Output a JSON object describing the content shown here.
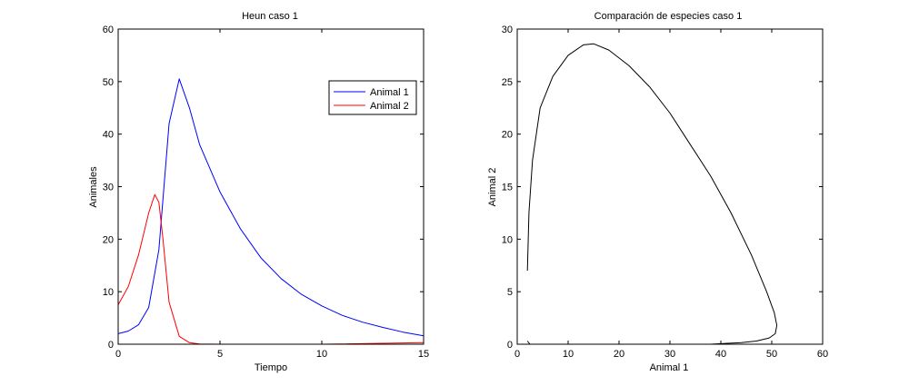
{
  "chart_data": [
    {
      "type": "line",
      "title": "Heun caso 1",
      "xlabel": "Tiempo",
      "ylabel": "Animales",
      "xlim": [
        0,
        15
      ],
      "ylim": [
        0,
        60
      ],
      "xticks": [
        0,
        5,
        10,
        15
      ],
      "yticks": [
        0,
        10,
        20,
        30,
        40,
        50,
        60
      ],
      "grid": false,
      "legend_position": "top-right",
      "series": [
        {
          "name": "Animal 1",
          "color": "#0000ff",
          "x": [
            0,
            0.5,
            1.0,
            1.5,
            2.0,
            2.5,
            3.0,
            3.5,
            4.0,
            5.0,
            6.0,
            7.0,
            8.0,
            9.0,
            10.0,
            11.0,
            12.0,
            13.0,
            14.0,
            15.0
          ],
          "y": [
            2.0,
            2.5,
            3.7,
            7.0,
            18.0,
            42.0,
            50.5,
            45.0,
            38.0,
            29.0,
            22.0,
            16.5,
            12.5,
            9.5,
            7.3,
            5.5,
            4.2,
            3.2,
            2.3,
            1.6
          ]
        },
        {
          "name": "Animal 2",
          "color": "#ff0000",
          "x": [
            0,
            0.5,
            1.0,
            1.5,
            1.8,
            2.0,
            2.2,
            2.5,
            3.0,
            3.5,
            4.0,
            5.0,
            10.0,
            15.0
          ],
          "y": [
            7.5,
            11.0,
            17.0,
            25.0,
            28.5,
            27.0,
            20.0,
            8.0,
            1.5,
            0.3,
            0.05,
            0.0,
            0.0,
            0.3
          ]
        }
      ]
    },
    {
      "type": "line",
      "title": "Comparación de especies caso 1",
      "xlabel": "Animal 1",
      "ylabel": "Animal 2",
      "xlim": [
        0,
        60
      ],
      "ylim": [
        0,
        30
      ],
      "xticks": [
        0,
        10,
        20,
        30,
        40,
        50,
        60
      ],
      "yticks": [
        0,
        5,
        10,
        15,
        20,
        25,
        30
      ],
      "grid": false,
      "series": [
        {
          "color": "#000000",
          "x": [
            2.0,
            2.3,
            3.0,
            4.5,
            7.0,
            10.0,
            13.0,
            15.0,
            18.0,
            22.0,
            26.0,
            30.0,
            34.0,
            38.0,
            42.0,
            46.0,
            49.0,
            50.5,
            51.0,
            50.7,
            49.5,
            47.0,
            44.0,
            40.0,
            38.0,
            30.0,
            20.0,
            10.0,
            5.0,
            2.5,
            2.0
          ],
          "y": [
            7.0,
            12.5,
            17.5,
            22.5,
            25.5,
            27.5,
            28.5,
            28.6,
            28.0,
            26.5,
            24.5,
            22.0,
            19.0,
            16.0,
            12.5,
            8.5,
            5.0,
            3.0,
            1.8,
            1.0,
            0.6,
            0.3,
            0.15,
            0.05,
            0.0,
            0.0,
            0.0,
            0.0,
            0.0,
            0.0,
            0.3
          ]
        }
      ]
    }
  ]
}
